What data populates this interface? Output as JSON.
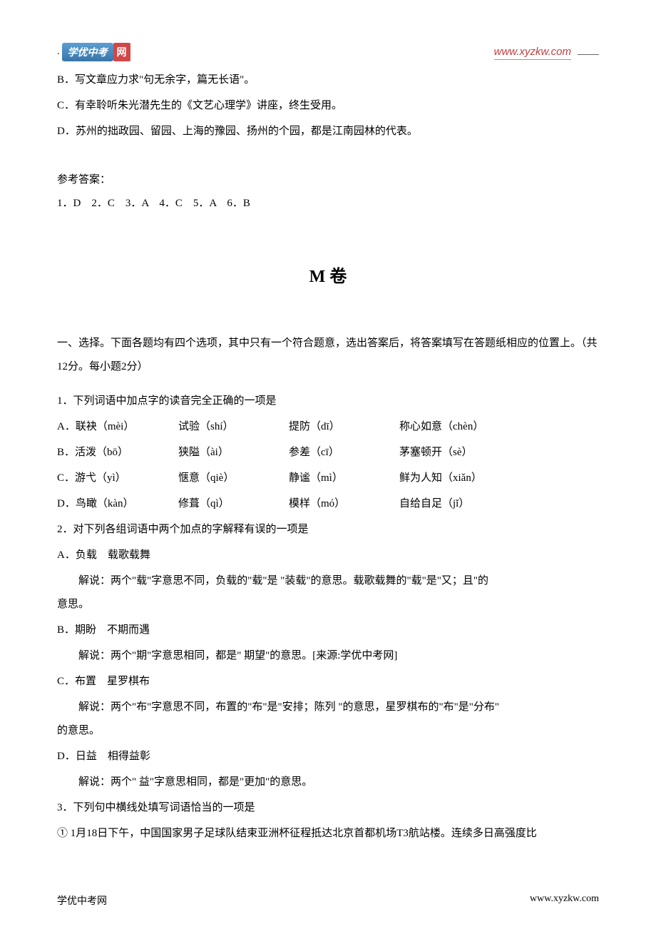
{
  "header": {
    "logo_text": "学优中考",
    "logo_net": "网",
    "website": "www.xyzkw.com"
  },
  "top_options": {
    "b": "B．写文章应力求\"句无余字，篇无长语\"。",
    "c": "C．有幸聆听朱光潜先生的《文艺心理学》讲座，终生受用。",
    "d": "D．苏州的拙政园、留园、上海的豫园、扬州的个园，都是江南园林的代表。"
  },
  "answers": {
    "label": "参考答案：",
    "content": "1．D　2．C　3．A　4．C　5．A　6．B"
  },
  "section_m": {
    "title_en": "M",
    "title_cn": "卷",
    "instruction": "一、选择。下面各题均有四个选项，其中只有一个符合题意，选出答案后，将答案填写在答题纸相应的位置上。（共12分。每小题2分）",
    "q1": {
      "stem": "1．下列词语中加点字的读音完全正确的一项是",
      "a": {
        "c1": "A．联袂（mèi）",
        "c2": "试验（shí）",
        "c3": "提防（dī）",
        "c4": "称心如意（chèn）"
      },
      "b": {
        "c1": "B．活泼（bō）",
        "c2": "狭隘（ài）",
        "c3": "参差（cī）",
        "c4": "茅塞顿开（sè）"
      },
      "c": {
        "c1": "C．游弋（yì）",
        "c2": "惬意（qiè）",
        "c3": "静谧（mì）",
        "c4": "鲜为人知（xiǎn）"
      },
      "d": {
        "c1": "D．鸟瞰（kàn）",
        "c2": "修葺（qì）",
        "c3": "模样（mó）",
        "c4": "自给自足（jǐ）"
      }
    },
    "q2": {
      "stem": "2．对下列各组词语中两个加点的字解释有误的一项是",
      "a": {
        "head": "A．负载　载歌载舞",
        "exp": "解说：两个\"载\"字意思不同，负载的\"载\"是 \"装载\"的意思。载歌载舞的\"载\"是\"又；且\"的"
      },
      "a_tail": "意思。",
      "b": {
        "head": "B．期盼　不期而遇",
        "exp": "解说：两个\"期\"字意思相同，都是\" 期望\"的意思。[来源:学优中考网]"
      },
      "c": {
        "head": "C．布置　星罗棋布",
        "exp": "解说：两个\"布\"字意思不同，布置的\"布\"是\"安排；陈列 \"的意思，星罗棋布的\"布\"是\"分布\""
      },
      "c_tail": "的意思。",
      "d": {
        "head": "D．日益　相得益彰",
        "exp": "解说：两个\" 益\"字意思相同，都是\"更加\"的意思。"
      }
    },
    "q3": {
      "stem": "3．下列句中横线处填写词语恰当的一项是",
      "item1": "① 1月18日下午，中国国家男子足球队结束亚洲杯征程抵达北京首都机场T3航站楼。连续多日高强度比"
    }
  },
  "footer": {
    "left": "学优中考网",
    "right": "www.xyzkw.com"
  }
}
